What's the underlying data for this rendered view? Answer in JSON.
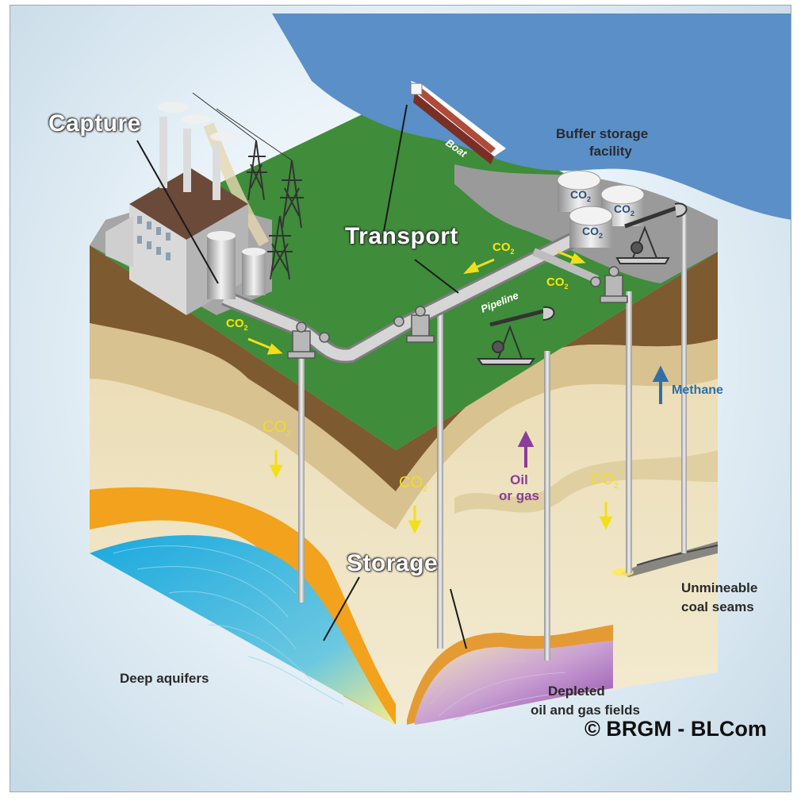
{
  "labels": {
    "capture": "Capture",
    "transport": "Transport",
    "storage": "Storage",
    "boat": "Boat",
    "pipeline": "Pipeline",
    "buffer_storage_line1": "Buffer storage",
    "buffer_storage_line2": "facility",
    "methane": "Methane",
    "oil_or_gas_line1": "Oil",
    "oil_or_gas_line2": "or gas",
    "unmineable_line1": "Unmineable",
    "unmineable_line2": "coal seams",
    "deep_aquifers": "Deep aquifers",
    "depleted_line1": "Depleted",
    "depleted_line2": "oil and gas fields",
    "co2_prefix": "CO",
    "co2_subscript": "2",
    "copyright": "© BRGM - BLCom"
  },
  "colors": {
    "grass": "#3f8c3a",
    "sea": "#5a8fc8",
    "topsoil": "#7d5a2f",
    "sand": "#e9dcb4",
    "orange_layer": "#f2a21c",
    "aquifer": "#2fb4e0",
    "reservoir": "#9a4fb0",
    "co2_arrow": "#f2df18",
    "methane_arrow": "#2f6fa8",
    "oil_arrow": "#8a3d9a"
  },
  "icons": [
    "power-plant-icon",
    "pylon-icon",
    "ship-icon",
    "storage-tank-icon",
    "pumpjack-icon",
    "wellhead-icon"
  ]
}
